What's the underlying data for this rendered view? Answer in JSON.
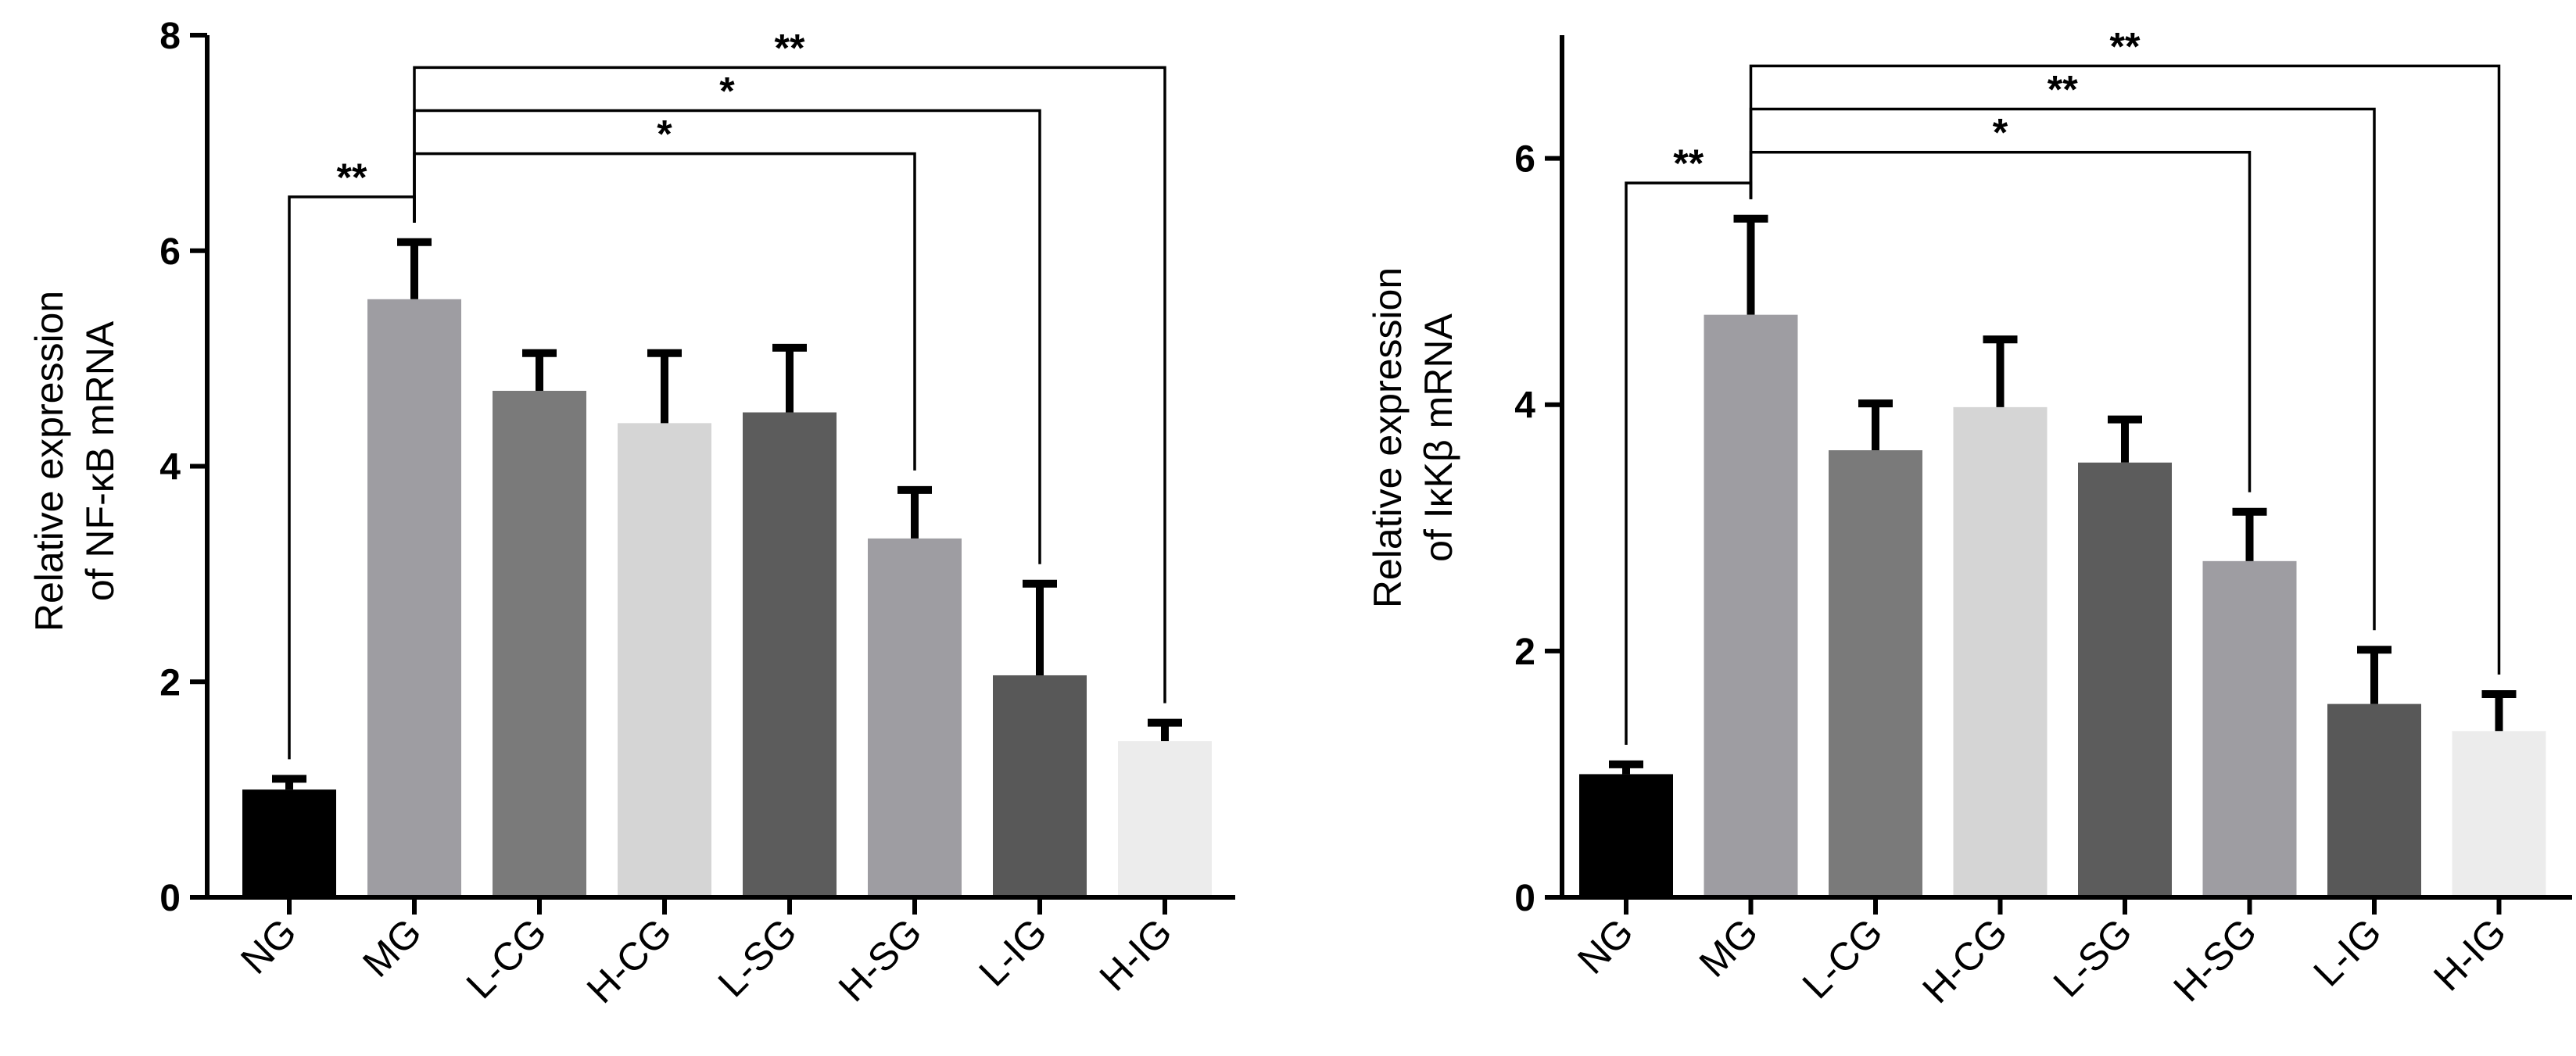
{
  "chart_data": [
    {
      "type": "bar",
      "title": "",
      "categories": [
        "NG",
        "MG",
        "L-CG",
        "H-CG",
        "L-SG",
        "H-SG",
        "L-IG",
        "H-IG"
      ],
      "values": [
        1.0,
        5.55,
        4.7,
        4.4,
        4.5,
        3.33,
        2.06,
        1.45
      ],
      "errors": [
        0.1,
        0.53,
        0.35,
        0.65,
        0.6,
        0.45,
        0.85,
        0.17
      ],
      "bar_colors": [
        "#000000",
        "#9e9da2",
        "#7a7a7a",
        "#d5d5d5",
        "#5c5c5c",
        "#9e9da2",
        "#585858",
        "#ececec"
      ],
      "xlabel": "",
      "ylabel_lines": [
        "Relative expression",
        "of NF-κB mRNA"
      ],
      "ylim": [
        0,
        8
      ],
      "yticks": [
        0,
        2,
        4,
        6,
        8
      ],
      "grid": false,
      "significance": [
        {
          "from": "NG",
          "to": "MG",
          "label": "**",
          "level": 6.5
        },
        {
          "from": "MG",
          "to": "H-SG",
          "label": "*",
          "level": 6.9
        },
        {
          "from": "MG",
          "to": "L-IG",
          "label": "*",
          "level": 7.3
        },
        {
          "from": "MG",
          "to": "H-IG",
          "label": "**",
          "level": 7.7
        }
      ]
    },
    {
      "type": "bar",
      "title": "",
      "categories": [
        "NG",
        "MG",
        "L-CG",
        "H-CG",
        "L-SG",
        "H-SG",
        "L-IG",
        "H-IG"
      ],
      "values": [
        1.0,
        4.73,
        3.63,
        3.98,
        3.53,
        2.73,
        1.57,
        1.35
      ],
      "errors": [
        0.08,
        0.78,
        0.38,
        0.55,
        0.35,
        0.4,
        0.44,
        0.3
      ],
      "bar_colors": [
        "#000000",
        "#9e9da2",
        "#7a7a7a",
        "#d5d5d5",
        "#5c5c5c",
        "#9e9da2",
        "#585858",
        "#ececec"
      ],
      "xlabel": "",
      "ylabel_lines": [
        "Relative expression",
        "of IκKβ mRNA"
      ],
      "ylim": [
        0,
        7
      ],
      "yticks": [
        0,
        2,
        4,
        6
      ],
      "grid": false,
      "significance": [
        {
          "from": "NG",
          "to": "MG",
          "label": "**",
          "level": 5.8
        },
        {
          "from": "MG",
          "to": "H-SG",
          "label": "*",
          "level": 6.05
        },
        {
          "from": "MG",
          "to": "L-IG",
          "label": "**",
          "level": 6.4
        },
        {
          "from": "MG",
          "to": "H-IG",
          "label": "**",
          "level": 6.75
        }
      ]
    }
  ]
}
